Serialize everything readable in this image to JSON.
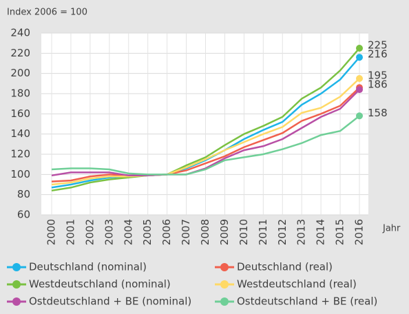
{
  "chart_data": {
    "type": "line",
    "subtitle": "Index 2006 = 100",
    "x_label": "Jahr",
    "categories": [
      "2000",
      "2001",
      "2002",
      "2003",
      "2004",
      "2005",
      "2006",
      "2007",
      "2008",
      "2009",
      "2010",
      "2011",
      "2012",
      "2013",
      "2014",
      "2015",
      "2016"
    ],
    "ylim": [
      60,
      240
    ],
    "yticks": [
      60,
      80,
      100,
      120,
      140,
      160,
      180,
      200,
      220,
      240
    ],
    "grid": true,
    "series": [
      {
        "name": "Deutschland (nominal)",
        "color": "#1eb4e8",
        "values": [
          87,
          90,
          94,
          97,
          98,
          99,
          100,
          106,
          114,
          124,
          135,
          144,
          152,
          169,
          180,
          194,
          216
        ],
        "end_label": "216"
      },
      {
        "name": "Deutschland (real)",
        "color": "#f0604d",
        "values": [
          93,
          94,
          98,
          100,
          99,
          99,
          100,
          104,
          111,
          118,
          127,
          134,
          141,
          153,
          160,
          168,
          186
        ],
        "end_label": "186"
      },
      {
        "name": "Westdeutschland (nominal)",
        "color": "#7ac142",
        "values": [
          84,
          87,
          92,
          95,
          97,
          99,
          100,
          109,
          117,
          129,
          140,
          148,
          157,
          175,
          186,
          203,
          225
        ],
        "end_label": "225"
      },
      {
        "name": "Westdeutschland (real)",
        "color": "#ffd966",
        "values": [
          90,
          92,
          96,
          98,
          98,
          99,
          100,
          107,
          115,
          124,
          132,
          140,
          147,
          161,
          166,
          177,
          195
        ],
        "end_label": "195"
      },
      {
        "name": "Ostdeutschland + BE (nominal)",
        "color": "#b84fa5",
        "values": [
          99,
          102,
          102,
          102,
          99,
          99,
          100,
          100,
          106,
          116,
          124,
          128,
          135,
          146,
          157,
          165,
          184
        ]
      },
      {
        "name": "Ostdeutschland + BE (real)",
        "color": "#6fcf97",
        "values": [
          105,
          106,
          106,
          105,
          101,
          100,
          100,
          100,
          105,
          114,
          117,
          120,
          125,
          131,
          139,
          143,
          158
        ],
        "end_label": "158"
      }
    ]
  }
}
